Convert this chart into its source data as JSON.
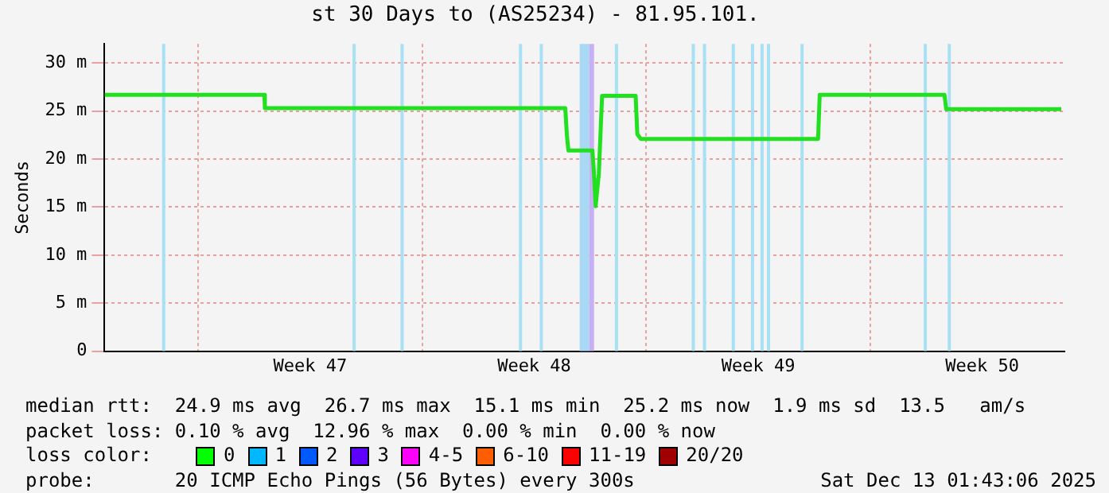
{
  "chart_data": {
    "type": "line",
    "title": "st 30 Days to (AS25234) - 81.95.101.",
    "ylabel": "Seconds",
    "x": [
      "2025-11-13T01:43",
      "2025-11-18T01:40",
      "2025-11-18T02:00",
      "2025-11-27T11:20",
      "2025-11-27T12:30",
      "2025-11-27T13:40",
      "2025-11-28T07:40",
      "2025-11-28T08:50",
      "2025-11-28T10:05",
      "2025-11-28T12:30",
      "2025-11-28T14:55",
      "2025-11-29T16:05",
      "2025-11-29T17:20",
      "2025-11-29T20:00",
      "2025-12-05T08:55",
      "2025-12-05T10:10",
      "2025-12-09T07:45",
      "2025-12-09T09:00",
      "2025-12-12T23:20"
    ],
    "series": [
      {
        "color": "#20e020",
        "values": [
          26.7,
          26.7,
          25.3,
          25.3,
          22.5,
          20.9,
          20.9,
          18.5,
          15.1,
          18.5,
          26.6,
          26.6,
          22.6,
          22.1,
          22.1,
          26.7,
          26.7,
          25.2,
          25.2
        ]
      }
    ],
    "xlim": [
      "2025-11-13T01:43",
      "2025-12-13T01:43"
    ],
    "xticks": [
      {
        "value": "2025-11-16T00:00",
        "label": null
      },
      {
        "value": "2025-11-19T12:00",
        "label": "Week 47"
      },
      {
        "value": "2025-11-23T00:00",
        "label": null
      },
      {
        "value": "2025-11-26T12:00",
        "label": "Week 48"
      },
      {
        "value": "2025-11-30T00:00",
        "label": null
      },
      {
        "value": "2025-12-03T12:00",
        "label": "Week 49"
      },
      {
        "value": "2025-12-07T00:00",
        "label": null
      },
      {
        "value": "2025-12-10T12:00",
        "label": "Week 50"
      }
    ],
    "ylim": [
      0,
      32
    ],
    "yticks": [
      {
        "value": 0,
        "label": "0"
      },
      {
        "value": 5,
        "label": "5 m"
      },
      {
        "value": 10,
        "label": "10 m"
      },
      {
        "value": 15,
        "label": "15 m"
      },
      {
        "value": 20,
        "label": "20 m"
      },
      {
        "value": 25,
        "label": "25 m"
      },
      {
        "value": 30,
        "label": "30 m"
      }
    ],
    "grid": true,
    "legend": false,
    "marker": "none",
    "line_style": "solid",
    "ref_lines": [
      {
        "axis": "x",
        "value": "2025-11-14T22:05",
        "color": "#a8e0f4"
      },
      {
        "axis": "x",
        "value": "2025-11-20T20:55",
        "color": "#a8e0f4"
      },
      {
        "axis": "x",
        "value": "2025-11-22T08:55",
        "color": "#a8e0f4"
      },
      {
        "axis": "x",
        "value": "2025-11-26T01:43",
        "color": "#a8e0f4"
      },
      {
        "axis": "x",
        "value": "2025-11-26T17:20",
        "color": "#a8e0f4"
      },
      {
        "axis": "x",
        "value": "2025-11-29T01:43",
        "color": "#a8e0f4"
      },
      {
        "axis": "x",
        "value": "2025-12-01T11:20",
        "color": "#a8e0f4"
      },
      {
        "axis": "x",
        "value": "2025-12-01T19:45",
        "color": "#a8e0f4"
      },
      {
        "axis": "x",
        "value": "2025-12-02T17:20",
        "color": "#a8e0f4"
      },
      {
        "axis": "x",
        "value": "2025-12-03T07:45",
        "color": "#a8e0f4"
      },
      {
        "axis": "x",
        "value": "2025-12-03T14:55",
        "color": "#a8e0f4"
      },
      {
        "axis": "x",
        "value": "2025-12-03T19:45",
        "color": "#a8e0f4"
      },
      {
        "axis": "x",
        "value": "2025-12-04T20:55",
        "color": "#a8e0f4"
      },
      {
        "axis": "x",
        "value": "2025-12-08T17:20",
        "color": "#a8e0f4"
      },
      {
        "axis": "x",
        "value": "2025-12-09T11:20",
        "color": "#a8e0f4"
      }
    ],
    "bands": [
      {
        "axis": "x",
        "from": "2025-11-27T22:05",
        "to": "2025-11-28T05:20",
        "color": "#a8d8f4"
      },
      {
        "axis": "x",
        "from": "2025-11-28T05:20",
        "to": "2025-11-28T08:55",
        "color": "#c8b0f4"
      }
    ],
    "annotations": [
      "median rtt:  24.9 ms avg  26.7 ms max  15.1 ms min  25.2 ms now  1.9 ms sd  13.5   am/s",
      "packet loss: 0.10 % avg  12.96 % max  0.00 % min  0.00 % now",
      "loss color:",
      "0",
      "1",
      "2",
      "3",
      "4-5",
      "6-10",
      "11-19",
      "20/20",
      "probe:       20 ICMP Echo Pings (56 Bytes) every 300s",
      "Sat Dec 13 01:43:06 2025"
    ]
  }
}
